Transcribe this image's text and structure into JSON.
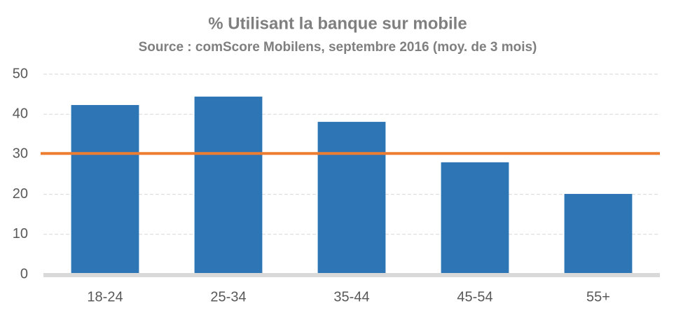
{
  "chart_data": {
    "type": "bar",
    "title": "% Utilisant la banque sur mobile",
    "subtitle": "Source : comScore Mobilens, septembre 2016 (moy. de 3 mois)",
    "categories": [
      "18-24",
      "25-34",
      "35-44",
      "45-54",
      "55+"
    ],
    "values": [
      42.3,
      44.4,
      38.1,
      28.0,
      20.1
    ],
    "color": "#2e75b6",
    "reference_line": {
      "value": 30.2,
      "color": "#ed7d31"
    },
    "ylim": [
      0,
      50
    ],
    "yticks": [
      0,
      10,
      20,
      30,
      40,
      50
    ],
    "grid": true
  }
}
